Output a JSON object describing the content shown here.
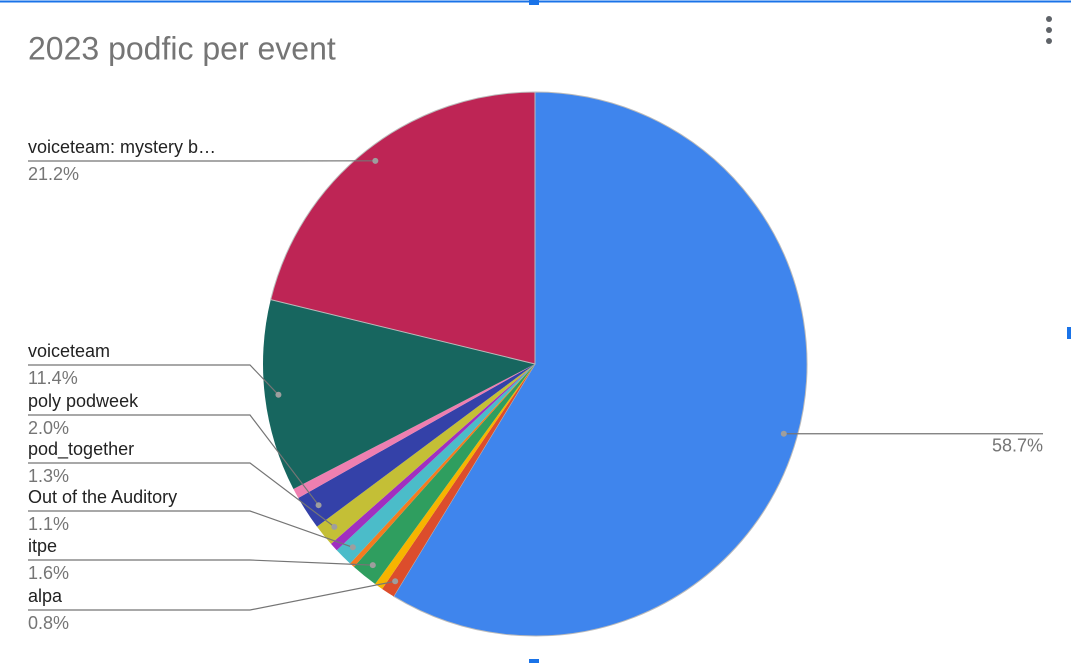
{
  "chart_data": {
    "type": "pie",
    "title": "2023 podfic per event",
    "categories": [
      null,
      "alpa",
      null,
      "itpe",
      null,
      "Out of the Auditory",
      null,
      "pod_together",
      "poly podweek",
      null,
      "voiceteam",
      "voiceteam: mystery b…"
    ],
    "values": [
      58.7,
      0.8,
      0.5,
      1.6,
      0.3,
      1.1,
      0.5,
      1.3,
      2.0,
      0.6,
      11.4,
      21.2
    ],
    "value_labels": [
      "58.7%",
      "0.8%",
      null,
      "1.6%",
      null,
      "1.1%",
      null,
      "1.3%",
      "2.0%",
      null,
      "11.4%",
      "21.2%"
    ],
    "colors": [
      "#3f85ed",
      "#dc4d2c",
      "#f6b400",
      "#2f9e5f",
      "#f47b20",
      "#4bbcc9",
      "#a12fc0",
      "#c4bf36",
      "#3441a8",
      "#ee7fb0",
      "#17665f",
      "#be2555"
    ]
  }
}
